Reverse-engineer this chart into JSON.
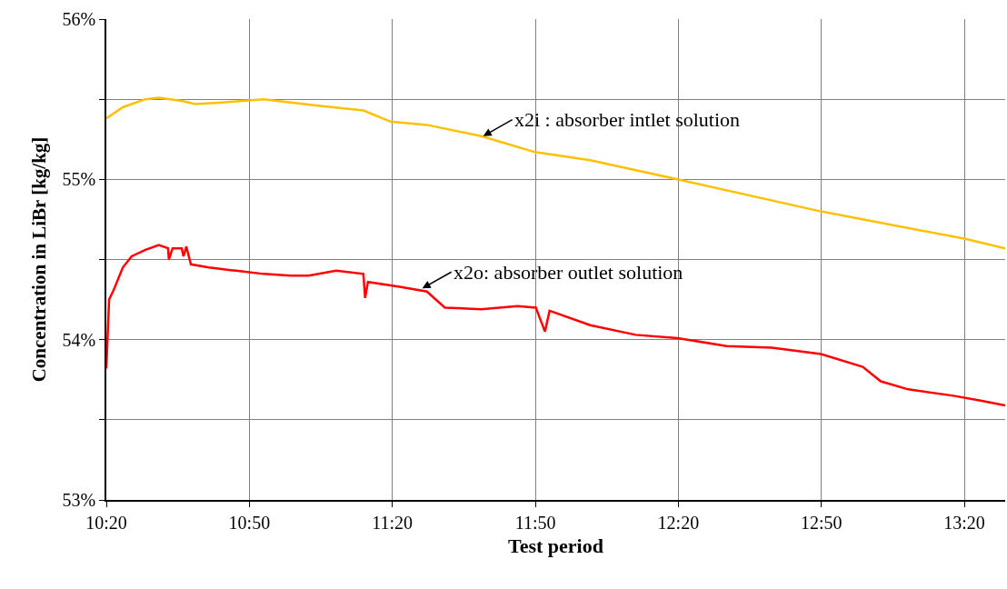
{
  "chart_data": {
    "type": "line",
    "xlabel": "Test period",
    "ylabel": "Concentration in LiBr [kg/kg]",
    "xlim": [
      10.3333,
      13.476
    ],
    "ylim": [
      53,
      56
    ],
    "xticks": [
      {
        "value": 10.3333,
        "label": "10:20"
      },
      {
        "value": 10.8333,
        "label": "10:50"
      },
      {
        "value": 11.3333,
        "label": "11:20"
      },
      {
        "value": 11.8333,
        "label": "11:50"
      },
      {
        "value": 12.3333,
        "label": "12:20"
      },
      {
        "value": 12.8333,
        "label": "12:50"
      },
      {
        "value": 13.3333,
        "label": "13:20"
      }
    ],
    "yticks": [
      {
        "value": 53,
        "label": "53%"
      },
      {
        "value": 53.5,
        "label": null
      },
      {
        "value": 54,
        "label": "54%"
      },
      {
        "value": 54.5,
        "label": null
      },
      {
        "value": 55,
        "label": "55%"
      },
      {
        "value": 55.5,
        "label": null
      },
      {
        "value": 56,
        "label": "56%"
      }
    ],
    "grid": true,
    "marker": "none",
    "line_style": "solid",
    "series": [
      {
        "color": "#ffc000",
        "x": [
          10.3333,
          10.391,
          10.47,
          10.517,
          10.597,
          10.644,
          10.74,
          10.883,
          10.978,
          11.073,
          11.232,
          11.327,
          11.454,
          11.644,
          11.832,
          12.025,
          12.33,
          12.832,
          13.333,
          13.476
        ],
        "values": [
          55.38,
          55.45,
          55.5,
          55.51,
          55.49,
          55.47,
          55.48,
          55.5,
          55.48,
          55.46,
          55.43,
          55.36,
          55.34,
          55.27,
          55.17,
          55.12,
          55.0,
          54.8,
          54.63,
          54.57
        ]
      },
      {
        "color": "#ff0000",
        "x": [
          10.3333,
          10.343,
          10.359,
          10.391,
          10.422,
          10.47,
          10.517,
          10.549,
          10.552,
          10.565,
          10.597,
          10.603,
          10.613,
          10.629,
          10.692,
          10.787,
          10.883,
          10.978,
          11.041,
          11.137,
          11.232,
          11.238,
          11.248,
          11.359,
          11.454,
          11.517,
          11.644,
          11.771,
          11.835,
          11.867,
          11.883,
          12.025,
          12.184,
          12.33,
          12.502,
          12.66,
          12.832,
          12.978,
          13.041,
          13.137,
          13.295,
          13.39,
          13.476
        ],
        "values": [
          53.82,
          54.25,
          54.31,
          54.45,
          54.52,
          54.56,
          54.59,
          54.57,
          54.5,
          54.57,
          54.57,
          54.52,
          54.58,
          54.47,
          54.45,
          54.43,
          54.41,
          54.4,
          54.4,
          54.43,
          54.41,
          54.26,
          54.36,
          54.33,
          54.3,
          54.2,
          54.19,
          54.21,
          54.2,
          54.05,
          54.18,
          54.09,
          54.03,
          54.01,
          53.96,
          53.95,
          53.91,
          53.83,
          53.74,
          53.69,
          53.65,
          53.62,
          53.59
        ]
      }
    ],
    "annotations": [
      {
        "text": "x2i : absorber intlet solution",
        "x": 11.651,
        "y": 55.27
      },
      {
        "text": "x2o: absorber outlet solution",
        "x": 11.438,
        "y": 54.32
      }
    ]
  }
}
